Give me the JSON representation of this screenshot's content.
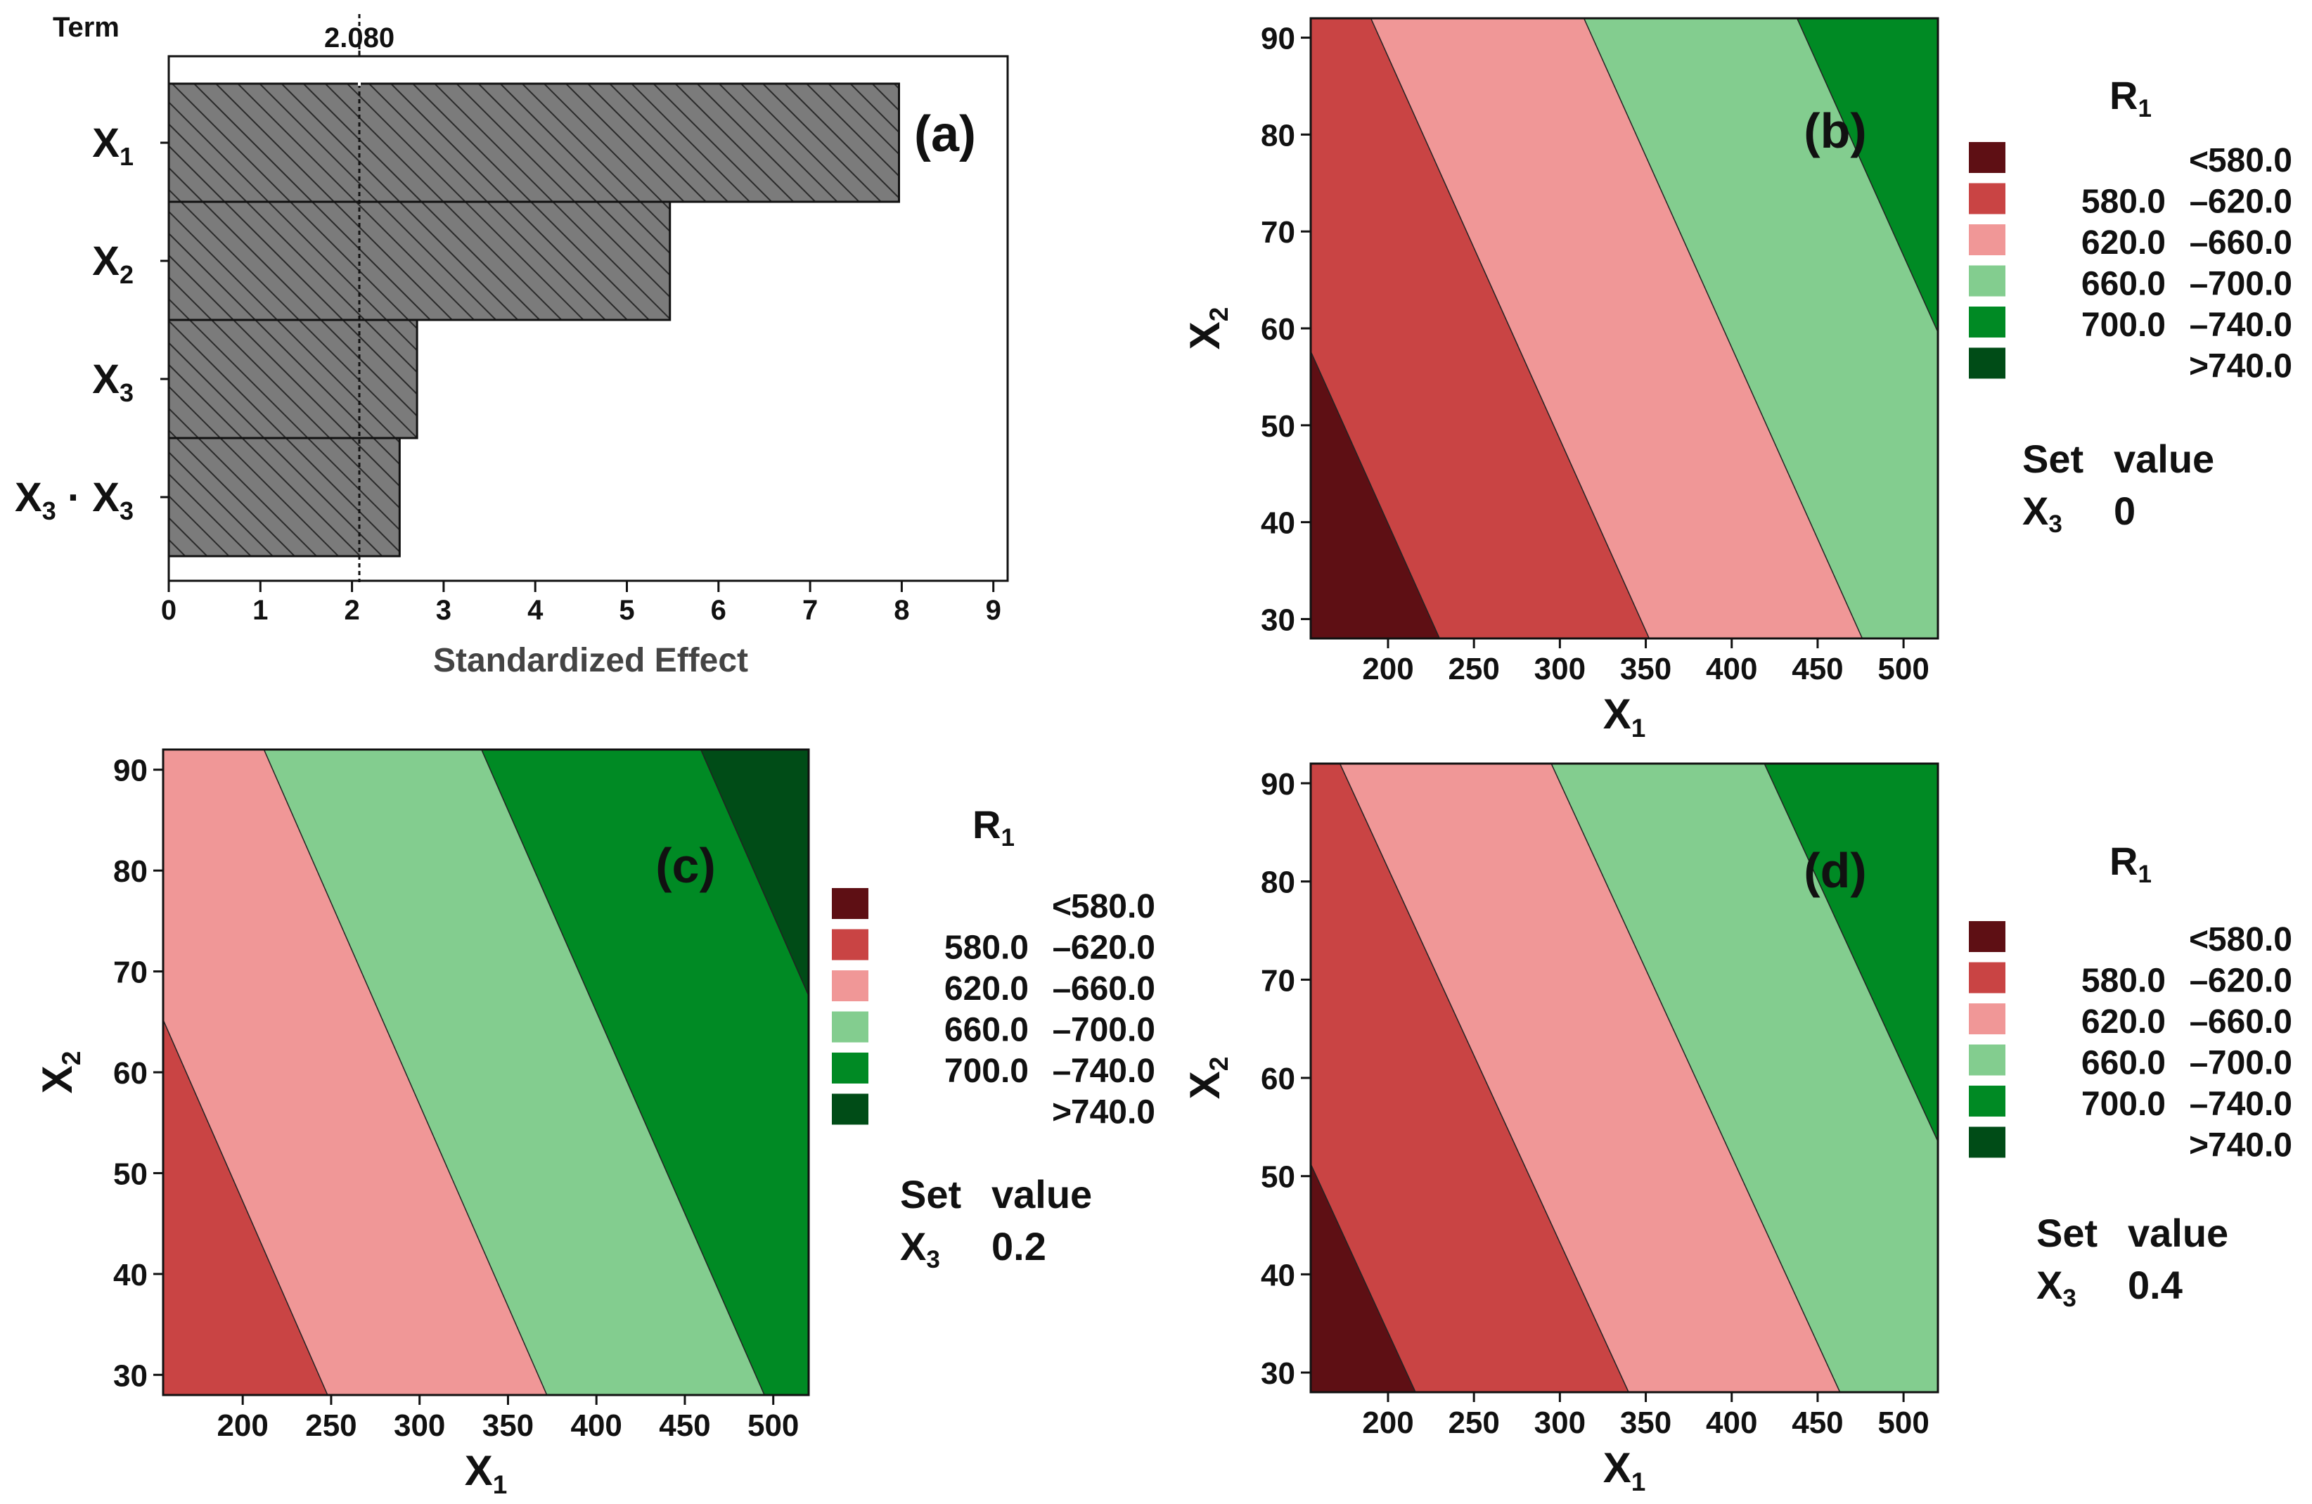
{
  "figure": "Pareto chart of standardized effects and contour plots of R1 vs X1 and X2",
  "colors": {
    "bar_fill": "#7b7b7b",
    "bar_hatch": "#2a2a2a",
    "level_lt_580": "#5e0f14",
    "level_580_620": "#c94444",
    "level_620_660": "#f09797",
    "level_660_700": "#83cd8f",
    "level_700_740": "#008a24",
    "level_gt_740": "#004c17"
  },
  "legend_common": {
    "title_main": "R",
    "title_sub": "1",
    "entries": [
      {
        "lo": "",
        "sym": "<",
        "hi": "580.0",
        "color_key": "level_lt_580"
      },
      {
        "lo": "580.0",
        "sym": "–",
        "hi": "620.0",
        "color_key": "level_580_620"
      },
      {
        "lo": "620.0",
        "sym": "–",
        "hi": "660.0",
        "color_key": "level_620_660"
      },
      {
        "lo": "660.0",
        "sym": "–",
        "hi": "700.0",
        "color_key": "level_660_700"
      },
      {
        "lo": "700.0",
        "sym": "–",
        "hi": "740.0",
        "color_key": "level_700_740"
      },
      {
        "lo": "",
        "sym": ">",
        "hi": "740.0",
        "color_key": "level_gt_740"
      }
    ],
    "setvalue_header": [
      "Set",
      "value"
    ],
    "setvalue_var_main": "X",
    "setvalue_var_sub": "3"
  },
  "chart_data": [
    {
      "id": "a",
      "type": "bar",
      "orientation": "horizontal",
      "panel_label": "(a)",
      "ylabel": "Term",
      "xlabel": "Standardized Effect",
      "xlim": [
        0,
        9
      ],
      "xticks": [
        0,
        1,
        2,
        3,
        4,
        5,
        6,
        7,
        8,
        9
      ],
      "reference_line": {
        "value": 2.08,
        "label": "2.080"
      },
      "categories": [
        {
          "main": "X",
          "sub": "1"
        },
        {
          "main": "X",
          "sub": "2"
        },
        {
          "main": "X",
          "sub": "3"
        },
        {
          "main": "X",
          "sub": "3",
          "sep": " · ",
          "main2": "X",
          "sub2": "3"
        }
      ],
      "values": [
        7.97,
        5.47,
        2.71,
        2.52
      ]
    },
    {
      "id": "b",
      "type": "contour",
      "panel_label": "(b)",
      "xlabel": {
        "main": "X",
        "sub": "1"
      },
      "ylabel": {
        "main": "X",
        "sub": "2"
      },
      "xlim": [
        155,
        520
      ],
      "ylim": [
        28,
        92
      ],
      "xticks": [
        200,
        250,
        300,
        350,
        400,
        450,
        500
      ],
      "yticks": [
        30,
        40,
        50,
        60,
        70,
        80,
        90
      ],
      "set_value": "0",
      "boundaries": [
        {
          "level": 580,
          "x_at_ymin": 230,
          "x_at_ymax": 68
        },
        {
          "level": 620,
          "x_at_ymin": 352,
          "x_at_ymax": 190
        },
        {
          "level": 660,
          "x_at_ymin": 476,
          "x_at_ymax": 314
        },
        {
          "level": 700,
          "x_at_ymin": 600,
          "x_at_ymax": 438
        },
        {
          "level": 740,
          "x_at_ymin": 724,
          "x_at_ymax": 562
        }
      ]
    },
    {
      "id": "c",
      "type": "contour",
      "panel_label": "(c)",
      "xlabel": {
        "main": "X",
        "sub": "1"
      },
      "ylabel": {
        "main": "X",
        "sub": "2"
      },
      "xlim": [
        155,
        520
      ],
      "ylim": [
        28,
        92
      ],
      "xticks": [
        200,
        250,
        300,
        350,
        400,
        450,
        500
      ],
      "yticks": [
        30,
        40,
        50,
        60,
        70,
        80,
        90
      ],
      "set_value": "0.2",
      "boundaries": [
        {
          "level": 580,
          "x_at_ymin": 125,
          "x_at_ymax": -35
        },
        {
          "level": 620,
          "x_at_ymin": 248,
          "x_at_ymax": 88
        },
        {
          "level": 660,
          "x_at_ymin": 372,
          "x_at_ymax": 212
        },
        {
          "level": 700,
          "x_at_ymin": 495,
          "x_at_ymax": 335
        },
        {
          "level": 740,
          "x_at_ymin": 619,
          "x_at_ymax": 459
        }
      ]
    },
    {
      "id": "d",
      "type": "contour",
      "panel_label": "(d)",
      "xlabel": {
        "main": "X",
        "sub": "1"
      },
      "ylabel": {
        "main": "X",
        "sub": "2"
      },
      "xlim": [
        155,
        520
      ],
      "ylim": [
        28,
        92
      ],
      "xticks": [
        200,
        250,
        300,
        350,
        400,
        450,
        500
      ],
      "yticks": [
        30,
        40,
        50,
        60,
        70,
        80,
        90
      ],
      "set_value": "0.4",
      "boundaries": [
        {
          "level": 580,
          "x_at_ymin": 216,
          "x_at_ymax": 48
        },
        {
          "level": 620,
          "x_at_ymin": 340,
          "x_at_ymax": 172
        },
        {
          "level": 660,
          "x_at_ymin": 463,
          "x_at_ymax": 295
        },
        {
          "level": 700,
          "x_at_ymin": 587,
          "x_at_ymax": 419
        },
        {
          "level": 740,
          "x_at_ymin": 710,
          "x_at_ymax": 542
        }
      ]
    }
  ]
}
